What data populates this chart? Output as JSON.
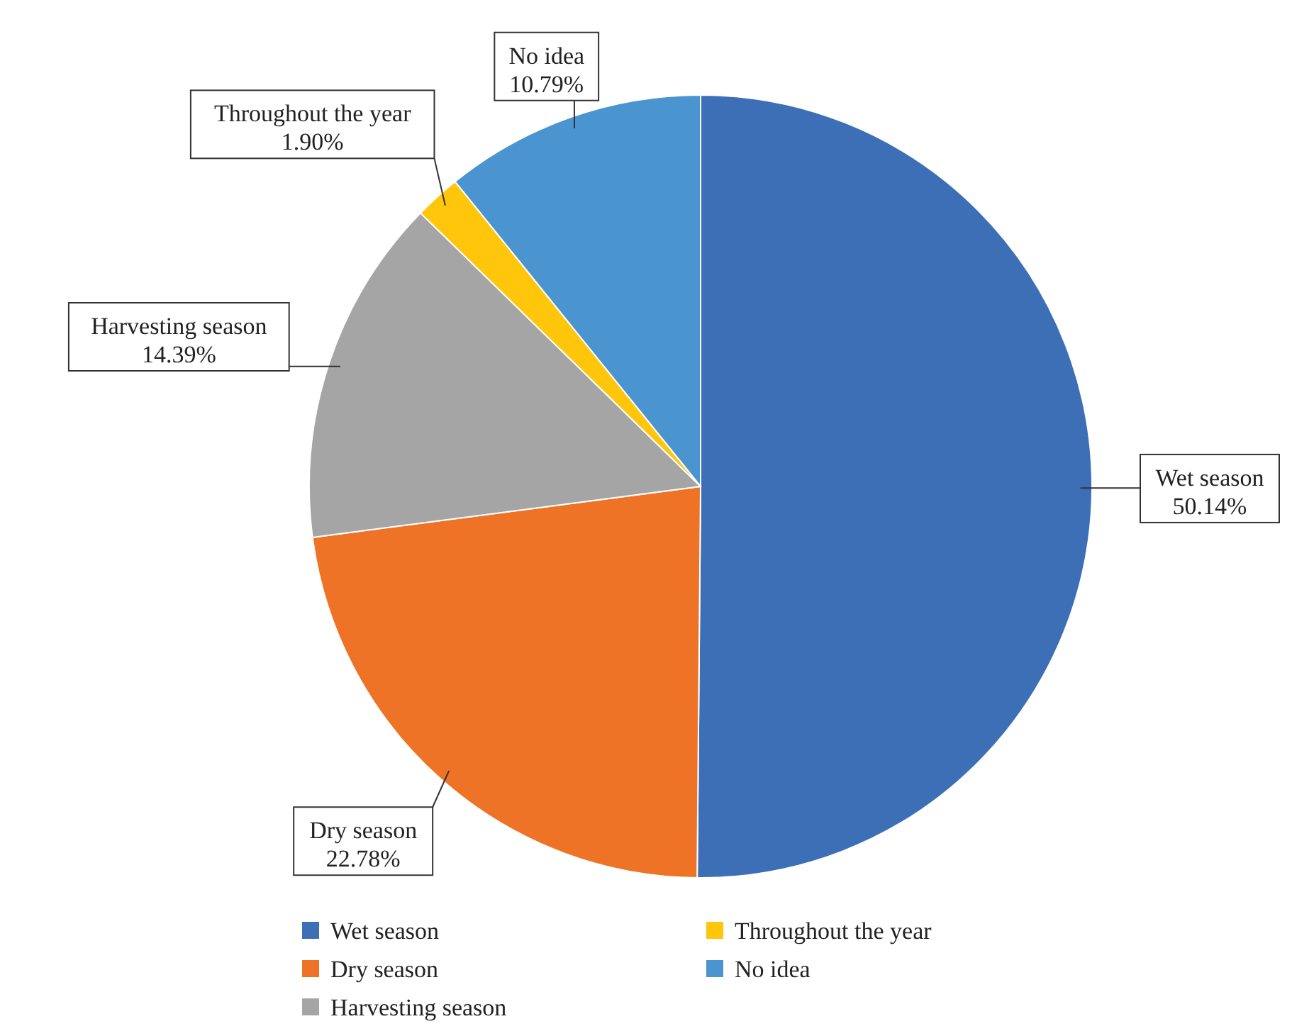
{
  "chart_data": {
    "type": "pie",
    "categories": [
      "Wet season",
      "Dry season",
      "Harvesting season",
      "Throughout the year",
      "No idea"
    ],
    "values": [
      50.14,
      22.78,
      14.39,
      1.9,
      10.79
    ],
    "value_labels": [
      "50.14%",
      "22.78%",
      "14.39%",
      "1.90%",
      "10.79%"
    ],
    "colors": [
      "#3d6fb6",
      "#ee7326",
      "#a5a5a5",
      "#ffc60b",
      "#4a95d0"
    ],
    "legend": "bottom"
  }
}
